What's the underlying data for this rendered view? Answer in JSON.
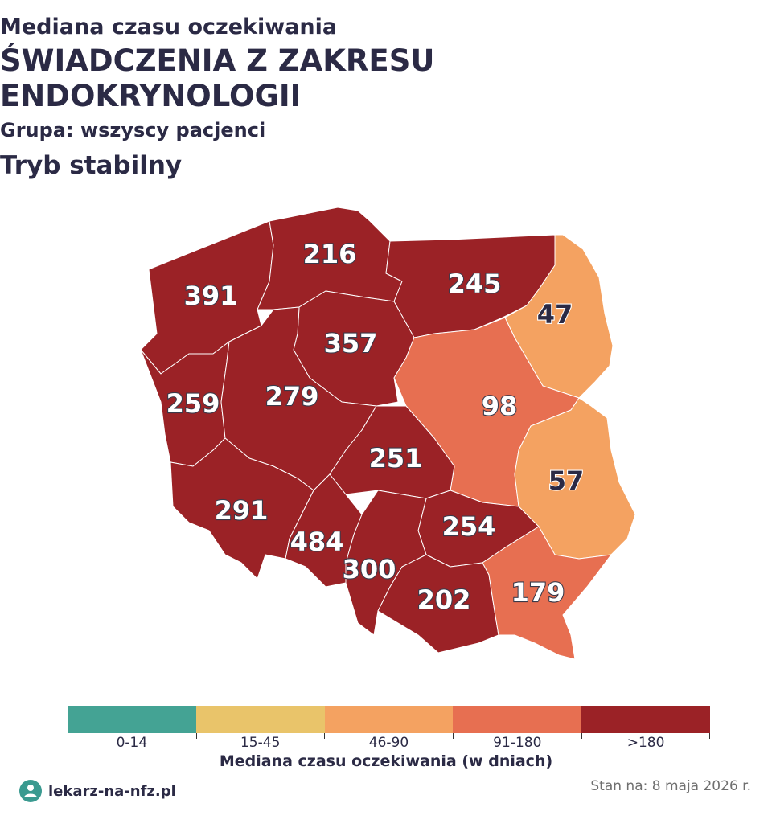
{
  "header": {
    "line1": "Mediana czasu oczekiwania",
    "line2": "ŚWIADCZENIA Z ZAKRESU",
    "line3": "ENDOKRYNOLOGII",
    "group": "Grupa: wszyscy pacjenci",
    "mode": "Tryb stabilny"
  },
  "regions": [
    {
      "id": "zachodniopomorskie",
      "value": "391",
      "range": ">180"
    },
    {
      "id": "pomorskie",
      "value": "216",
      "range": ">180"
    },
    {
      "id": "warminsko-mazurskie",
      "value": "245",
      "range": ">180"
    },
    {
      "id": "podlaskie",
      "value": "47",
      "range": "46-90"
    },
    {
      "id": "kujawsko-pomorskie",
      "value": "357",
      "range": ">180"
    },
    {
      "id": "lubuskie",
      "value": "259",
      "range": ">180"
    },
    {
      "id": "wielkopolskie",
      "value": "279",
      "range": ">180"
    },
    {
      "id": "mazowieckie",
      "value": "98",
      "range": "91-180"
    },
    {
      "id": "lodzkie",
      "value": "251",
      "range": ">180"
    },
    {
      "id": "lubelskie",
      "value": "57",
      "range": "46-90"
    },
    {
      "id": "dolnoslaskie",
      "value": "291",
      "range": ">180"
    },
    {
      "id": "opolskie",
      "value": "484",
      "range": ">180"
    },
    {
      "id": "swietokrzyskie",
      "value": "254",
      "range": ">180"
    },
    {
      "id": "slaskie",
      "value": "300",
      "range": ">180"
    },
    {
      "id": "malopolskie",
      "value": "202",
      "range": ">180"
    },
    {
      "id": "podkarpackie",
      "value": "179",
      "range": "91-180"
    }
  ],
  "legend": {
    "bins": [
      {
        "label": "0-14",
        "color": "#44a394"
      },
      {
        "label": "15-45",
        "color": "#e9c46a"
      },
      {
        "label": "46-90",
        "color": "#f4a261"
      },
      {
        "label": "91-180",
        "color": "#e76f51"
      },
      {
        "label": ">180",
        "color": "#9b2226"
      }
    ],
    "title": "Mediana czasu oczekiwania (w dniach)"
  },
  "footer": {
    "brand": "lekarz-na-nfz.pl",
    "status": "Stan na: 8 maja 2026 r."
  }
}
